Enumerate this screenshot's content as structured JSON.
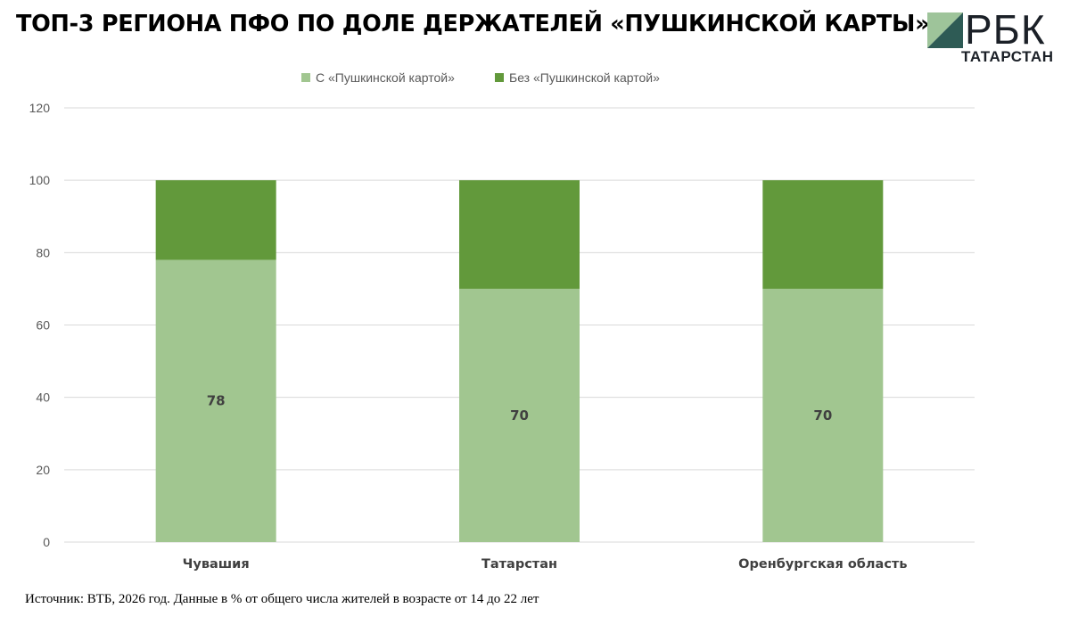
{
  "title": "ТОП-3 РЕГИОНА ПФО ПО ДОЛЕ ДЕРЖАТЕЛЕЙ «ПУШКИНСКОЙ КАРТЫ»",
  "logo": {
    "name": "РБК",
    "subtitle": "ТАТАРСТАН",
    "icon": "rbc-logo-icon"
  },
  "legend": [
    {
      "label": "С «Пушкинской картой»",
      "color": "#a1c690"
    },
    {
      "label": "Без «Пушкинской картой»",
      "color": "#62993b"
    }
  ],
  "source": "Источник: ВТБ, 2026 год. Данные в % от общего числа жителей в возрасте от 14 до 22 лет",
  "chart_data": {
    "type": "bar",
    "stacked": true,
    "categories": [
      "Чувашия",
      "Татарстан",
      "Оренбургская область"
    ],
    "series": [
      {
        "name": "С «Пушкинской картой»",
        "values": [
          78,
          70,
          70
        ],
        "color": "#a1c690",
        "data_labels": [
          "78",
          "70",
          "70"
        ]
      },
      {
        "name": "Без «Пушкинской картой»",
        "values": [
          22,
          30,
          30
        ],
        "color": "#62993b"
      }
    ],
    "ylim": [
      0,
      120
    ],
    "yticks": [
      0,
      20,
      40,
      60,
      80,
      100,
      120
    ],
    "grid": true,
    "legend_position": "top"
  }
}
